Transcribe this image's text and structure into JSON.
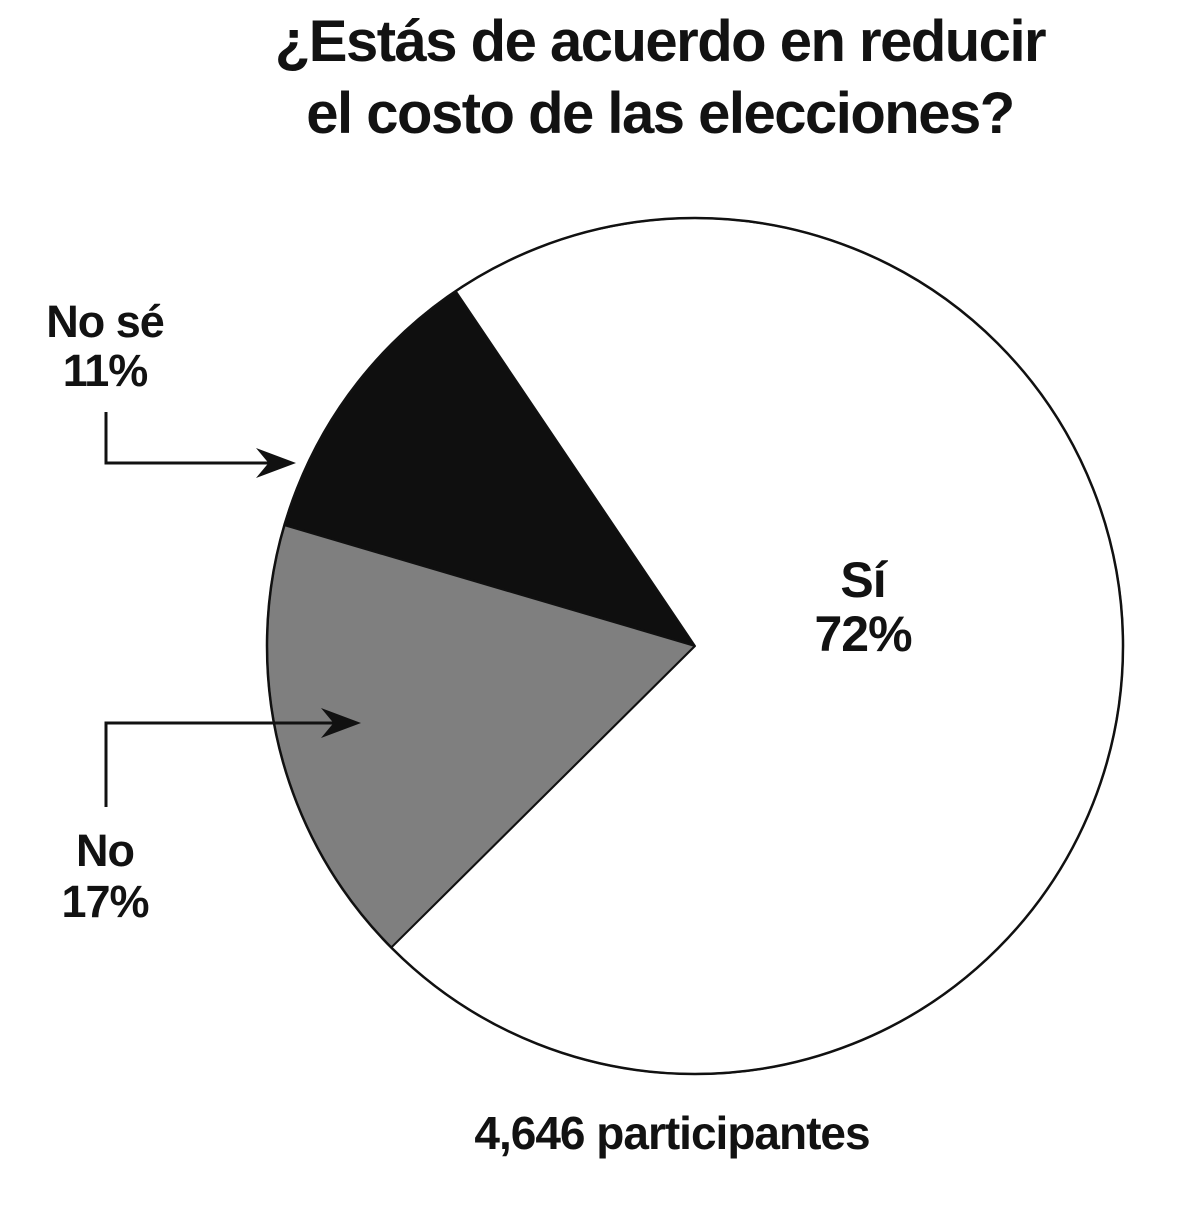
{
  "title": {
    "text": "¿Estás de acuerdo en reducir el costo de las elecciones?",
    "lines": [
      "¿Estás de acuerdo en reducir",
      "el costo de las elecciones?"
    ]
  },
  "labels": {
    "no_se": {
      "name": "No sé",
      "pct": "11%"
    },
    "no": {
      "name": "No",
      "pct": "17%"
    },
    "si": {
      "name": "Sí",
      "pct": "72%"
    }
  },
  "footer": {
    "text": "4,646 participantes"
  },
  "chart_data": {
    "type": "pie",
    "title": "¿Estás de acuerdo en reducir el costo de las elecciones?",
    "categories": [
      "Sí",
      "No",
      "No sé"
    ],
    "values": [
      72,
      17,
      11
    ],
    "unit": "%",
    "participants_note": "4,646 participantes",
    "legend": "none",
    "background": "#ffffff",
    "stroke_color": "#111111",
    "start_angle_deg": 124,
    "direction": "counterclockwise",
    "slices": [
      {
        "id": "no-se",
        "label": "No sé",
        "value": 11,
        "display": "11%",
        "color": "#0f0f0f",
        "callout": "elbow-arrow-left"
      },
      {
        "id": "no",
        "label": "No",
        "value": 17,
        "display": "17%",
        "color": "#7f7f7f",
        "callout": "elbow-arrow-left"
      },
      {
        "id": "si",
        "label": "Sí",
        "value": 72,
        "display": "72%",
        "color": "#ffffff",
        "callout": "label-inside"
      }
    ]
  }
}
